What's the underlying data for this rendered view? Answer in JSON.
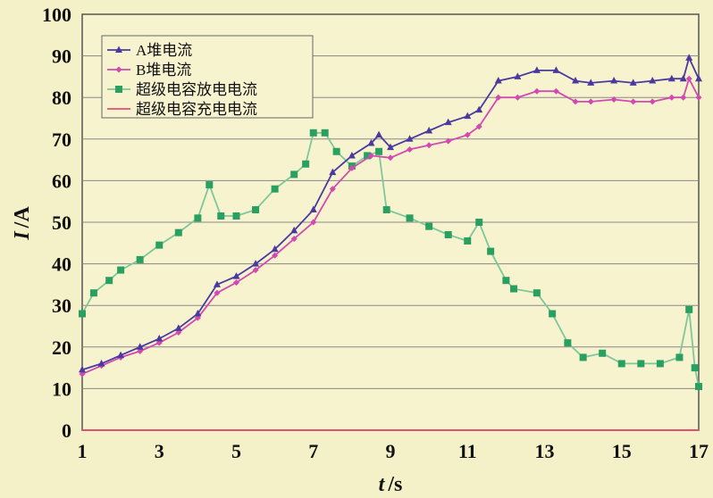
{
  "chart_data": {
    "type": "line",
    "xlabel_italic": "t",
    "xlabel_unit": "/s",
    "ylabel_italic": "I",
    "ylabel_unit": "/A",
    "xlim": [
      1,
      17
    ],
    "ylim": [
      0,
      100
    ],
    "x_ticks": [
      1,
      3,
      5,
      7,
      9,
      11,
      13,
      15,
      17
    ],
    "y_ticks": [
      0,
      10,
      20,
      30,
      40,
      50,
      60,
      70,
      80,
      90,
      100
    ],
    "grid": "horizontal",
    "legend_position": "top-left",
    "series": [
      {
        "name": "A堆电流",
        "color": "#4a3aa0",
        "marker": "triangle",
        "points": [
          [
            1.0,
            14.5
          ],
          [
            1.5,
            16.0
          ],
          [
            2.0,
            18.0
          ],
          [
            2.5,
            20.0
          ],
          [
            3.0,
            22.0
          ],
          [
            3.5,
            24.5
          ],
          [
            4.0,
            28.0
          ],
          [
            4.5,
            35.0
          ],
          [
            5.0,
            37.0
          ],
          [
            5.5,
            40.0
          ],
          [
            6.0,
            43.5
          ],
          [
            6.5,
            48.0
          ],
          [
            7.0,
            53.0
          ],
          [
            7.5,
            62.0
          ],
          [
            8.0,
            66.0
          ],
          [
            8.5,
            69.0
          ],
          [
            8.7,
            71.0
          ],
          [
            9.0,
            68.0
          ],
          [
            9.5,
            70.0
          ],
          [
            10.0,
            72.0
          ],
          [
            10.5,
            74.0
          ],
          [
            11.0,
            75.5
          ],
          [
            11.3,
            77.0
          ],
          [
            11.8,
            84.0
          ],
          [
            12.3,
            85.0
          ],
          [
            12.8,
            86.5
          ],
          [
            13.3,
            86.5
          ],
          [
            13.8,
            84.0
          ],
          [
            14.2,
            83.5
          ],
          [
            14.8,
            84.0
          ],
          [
            15.3,
            83.5
          ],
          [
            15.8,
            84.0
          ],
          [
            16.3,
            84.5
          ],
          [
            16.6,
            84.5
          ],
          [
            16.75,
            89.5
          ],
          [
            17.0,
            84.5
          ]
        ]
      },
      {
        "name": "B堆电流",
        "color": "#d24ab0",
        "marker": "diamond",
        "points": [
          [
            1.0,
            13.5
          ],
          [
            1.5,
            15.5
          ],
          [
            2.0,
            17.5
          ],
          [
            2.5,
            19.0
          ],
          [
            3.0,
            21.0
          ],
          [
            3.5,
            23.5
          ],
          [
            4.0,
            27.0
          ],
          [
            4.5,
            33.0
          ],
          [
            5.0,
            35.5
          ],
          [
            5.5,
            38.5
          ],
          [
            6.0,
            42.0
          ],
          [
            6.5,
            46.0
          ],
          [
            7.0,
            50.0
          ],
          [
            7.5,
            58.0
          ],
          [
            8.0,
            63.0
          ],
          [
            8.5,
            66.0
          ],
          [
            9.0,
            65.5
          ],
          [
            9.5,
            67.5
          ],
          [
            10.0,
            68.5
          ],
          [
            10.5,
            69.5
          ],
          [
            11.0,
            71.0
          ],
          [
            11.3,
            73.0
          ],
          [
            11.8,
            80.0
          ],
          [
            12.3,
            80.0
          ],
          [
            12.8,
            81.5
          ],
          [
            13.3,
            81.5
          ],
          [
            13.8,
            79.0
          ],
          [
            14.2,
            79.0
          ],
          [
            14.8,
            79.5
          ],
          [
            15.3,
            79.0
          ],
          [
            15.8,
            79.0
          ],
          [
            16.3,
            80.0
          ],
          [
            16.6,
            80.0
          ],
          [
            16.75,
            84.5
          ],
          [
            17.0,
            80.0
          ]
        ]
      },
      {
        "name": "超级电容放电电流",
        "color": "#2aa060",
        "line_color": "#7cc89a",
        "marker": "square",
        "points": [
          [
            1.0,
            28.0
          ],
          [
            1.3,
            33.0
          ],
          [
            1.7,
            36.0
          ],
          [
            2.0,
            38.5
          ],
          [
            2.5,
            41.0
          ],
          [
            3.0,
            44.5
          ],
          [
            3.5,
            47.5
          ],
          [
            4.0,
            51.0
          ],
          [
            4.3,
            59.0
          ],
          [
            4.6,
            51.5
          ],
          [
            5.0,
            51.5
          ],
          [
            5.5,
            53.0
          ],
          [
            6.0,
            58.0
          ],
          [
            6.5,
            61.5
          ],
          [
            6.8,
            64.0
          ],
          [
            7.0,
            71.5
          ],
          [
            7.3,
            71.5
          ],
          [
            7.6,
            67.0
          ],
          [
            8.0,
            63.5
          ],
          [
            8.4,
            66.0
          ],
          [
            8.7,
            67.0
          ],
          [
            8.9,
            53.0
          ],
          [
            9.5,
            51.0
          ],
          [
            10.0,
            49.0
          ],
          [
            10.5,
            47.0
          ],
          [
            11.0,
            45.5
          ],
          [
            11.3,
            50.0
          ],
          [
            11.6,
            43.0
          ],
          [
            12.0,
            36.0
          ],
          [
            12.2,
            34.0
          ],
          [
            12.8,
            33.0
          ],
          [
            13.2,
            28.0
          ],
          [
            13.6,
            21.0
          ],
          [
            14.0,
            17.5
          ],
          [
            14.5,
            18.5
          ],
          [
            15.0,
            16.0
          ],
          [
            15.5,
            16.0
          ],
          [
            16.0,
            16.0
          ],
          [
            16.5,
            17.5
          ],
          [
            16.75,
            29.0
          ],
          [
            16.9,
            15.0
          ],
          [
            17.0,
            10.5
          ]
        ]
      },
      {
        "name": "超级电容充电电流",
        "color": "#e05070",
        "marker": "none",
        "points": [
          [
            1.0,
            0.0
          ],
          [
            17.0,
            0.0
          ]
        ]
      }
    ]
  }
}
